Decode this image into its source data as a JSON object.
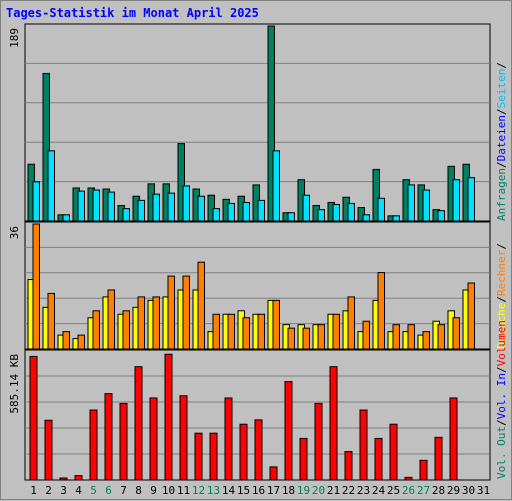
{
  "title": "Tages-Statistik im Monat April 2025",
  "chart_data": [
    {
      "type": "bar",
      "name": "requests",
      "ymax_label": "189",
      "ylim": [
        0,
        189
      ],
      "categories": [
        "1",
        "2",
        "3",
        "4",
        "5",
        "6",
        "7",
        "8",
        "9",
        "10",
        "11",
        "12",
        "13",
        "14",
        "15",
        "16",
        "17",
        "18",
        "19",
        "20",
        "21",
        "22",
        "23",
        "24",
        "25",
        "26",
        "27",
        "28",
        "29",
        "30",
        "31"
      ],
      "weekend_days": [
        "5",
        "6",
        "12",
        "13",
        "19",
        "20",
        "26",
        "27"
      ],
      "series": [
        {
          "name": "Anfragen",
          "color": "#008060",
          "values": [
            55,
            143,
            6,
            32,
            32,
            31,
            15,
            24,
            36,
            36,
            75,
            31,
            25,
            21,
            24,
            35,
            189,
            8,
            40,
            15,
            18,
            23,
            13,
            50,
            5,
            40,
            35,
            11,
            53,
            55,
            0
          ]
        },
        {
          "name": "Dateien",
          "color": "#0000ff",
          "values": [
            38,
            68,
            6,
            29,
            30,
            28,
            12,
            20,
            26,
            27,
            34,
            24,
            12,
            17,
            18,
            20,
            68,
            8,
            25,
            11,
            16,
            17,
            6,
            22,
            5,
            35,
            30,
            10,
            40,
            42,
            0
          ]
        },
        {
          "name": "Seiten",
          "color": "#00e0ff",
          "values": [
            38,
            68,
            6,
            29,
            30,
            28,
            12,
            20,
            26,
            27,
            34,
            24,
            12,
            17,
            18,
            20,
            68,
            8,
            25,
            11,
            16,
            17,
            6,
            22,
            5,
            35,
            30,
            10,
            40,
            42,
            0
          ]
        }
      ]
    },
    {
      "type": "bar",
      "name": "visits",
      "ymax_label": "36",
      "ylim": [
        0,
        36
      ],
      "series": [
        {
          "name": "Besuche",
          "color": "#ffff00",
          "values": [
            20,
            12,
            4,
            3,
            9,
            15,
            10,
            12,
            14,
            15,
            17,
            17,
            5,
            10,
            11,
            10,
            14,
            7,
            7,
            7,
            10,
            11,
            5,
            14,
            5,
            5,
            4,
            8,
            11,
            17,
            0
          ]
        },
        {
          "name": "Rechner",
          "color": "#ff8000",
          "values": [
            36,
            16,
            5,
            4,
            11,
            17,
            11,
            15,
            15,
            21,
            21,
            25,
            10,
            10,
            9,
            10,
            14,
            6,
            6,
            7,
            10,
            15,
            8,
            22,
            7,
            7,
            5,
            7,
            9,
            19,
            0
          ]
        }
      ]
    },
    {
      "type": "bar",
      "name": "volume",
      "ymax_label": "585.14 KB",
      "ylim": [
        0,
        585.14
      ],
      "series": [
        {
          "name": "Volumen",
          "color": "#ff0000",
          "values": [
            565,
            273,
            8,
            20,
            320,
            395,
            350,
            518,
            375,
            575,
            385,
            214,
            214,
            375,
            255,
            275,
            60,
            450,
            190,
            350,
            518,
            130,
            320,
            190,
            255,
            12,
            90,
            195,
            375,
            0,
            0
          ]
        },
        {
          "name": "Vol. In",
          "color": "#0000ff",
          "values": []
        },
        {
          "name": "Vol. Out",
          "color": "#008060",
          "values": []
        }
      ]
    }
  ],
  "legend": {
    "top_panel": [
      "Anfragen",
      "/",
      "Dateien",
      "/",
      "Seiten",
      "/"
    ],
    "middle_panel": [
      "Besuche",
      "/",
      "Rechner",
      "/"
    ],
    "bottom_panel": [
      "Vol. Out",
      "/",
      "Vol. In",
      "/",
      "Volumen"
    ]
  },
  "colors": {
    "plot_bg": "#c0c0c0",
    "grid": "#808080",
    "weekday_label": "#000000",
    "weekend_label": "#00805c"
  }
}
